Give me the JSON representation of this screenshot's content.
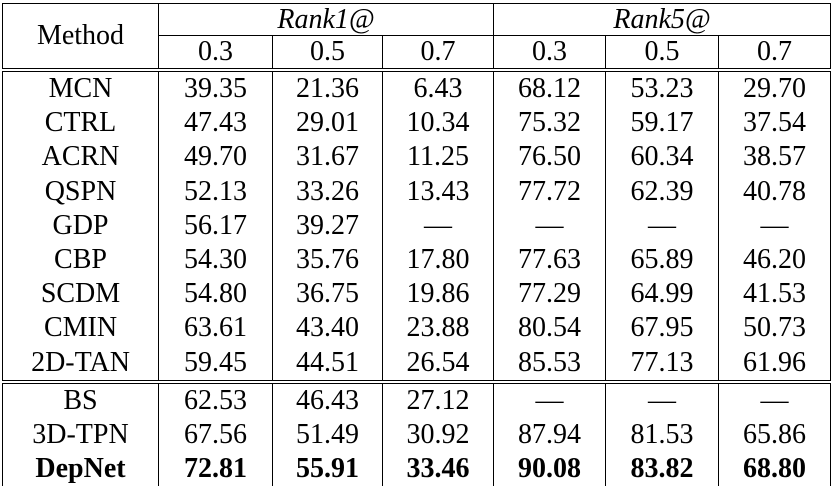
{
  "table": {
    "header": {
      "method": "Method",
      "groups": [
        "Rank1@",
        "Rank5@"
      ],
      "thresholds": [
        "0.3",
        "0.5",
        "0.7",
        "0.3",
        "0.5",
        "0.7"
      ]
    },
    "sections": [
      {
        "rows": [
          {
            "method": "MCN",
            "values": [
              "39.35",
              "21.36",
              "6.43",
              "68.12",
              "53.23",
              "29.70"
            ]
          },
          {
            "method": "CTRL",
            "values": [
              "47.43",
              "29.01",
              "10.34",
              "75.32",
              "59.17",
              "37.54"
            ]
          },
          {
            "method": "ACRN",
            "values": [
              "49.70",
              "31.67",
              "11.25",
              "76.50",
              "60.34",
              "38.57"
            ]
          },
          {
            "method": "QSPN",
            "values": [
              "52.13",
              "33.26",
              "13.43",
              "77.72",
              "62.39",
              "40.78"
            ]
          },
          {
            "method": "GDP",
            "values": [
              "56.17",
              "39.27",
              "—",
              "—",
              "—",
              "—"
            ]
          },
          {
            "method": "CBP",
            "values": [
              "54.30",
              "35.76",
              "17.80",
              "77.63",
              "65.89",
              "46.20"
            ]
          },
          {
            "method": "SCDM",
            "values": [
              "54.80",
              "36.75",
              "19.86",
              "77.29",
              "64.99",
              "41.53"
            ]
          },
          {
            "method": "CMIN",
            "values": [
              "63.61",
              "43.40",
              "23.88",
              "80.54",
              "67.95",
              "50.73"
            ]
          },
          {
            "method": "2D-TAN",
            "values": [
              "59.45",
              "44.51",
              "26.54",
              "85.53",
              "77.13",
              "61.96"
            ]
          }
        ]
      },
      {
        "rows": [
          {
            "method": "BS",
            "values": [
              "62.53",
              "46.43",
              "27.12",
              "—",
              "—",
              "—"
            ]
          },
          {
            "method": "3D-TPN",
            "values": [
              "67.56",
              "51.49",
              "30.92",
              "87.94",
              "81.53",
              "65.86"
            ]
          },
          {
            "method": "DepNet",
            "values": [
              "72.81",
              "55.91",
              "33.46",
              "90.08",
              "83.82",
              "68.80"
            ],
            "bold": true
          }
        ]
      }
    ]
  }
}
